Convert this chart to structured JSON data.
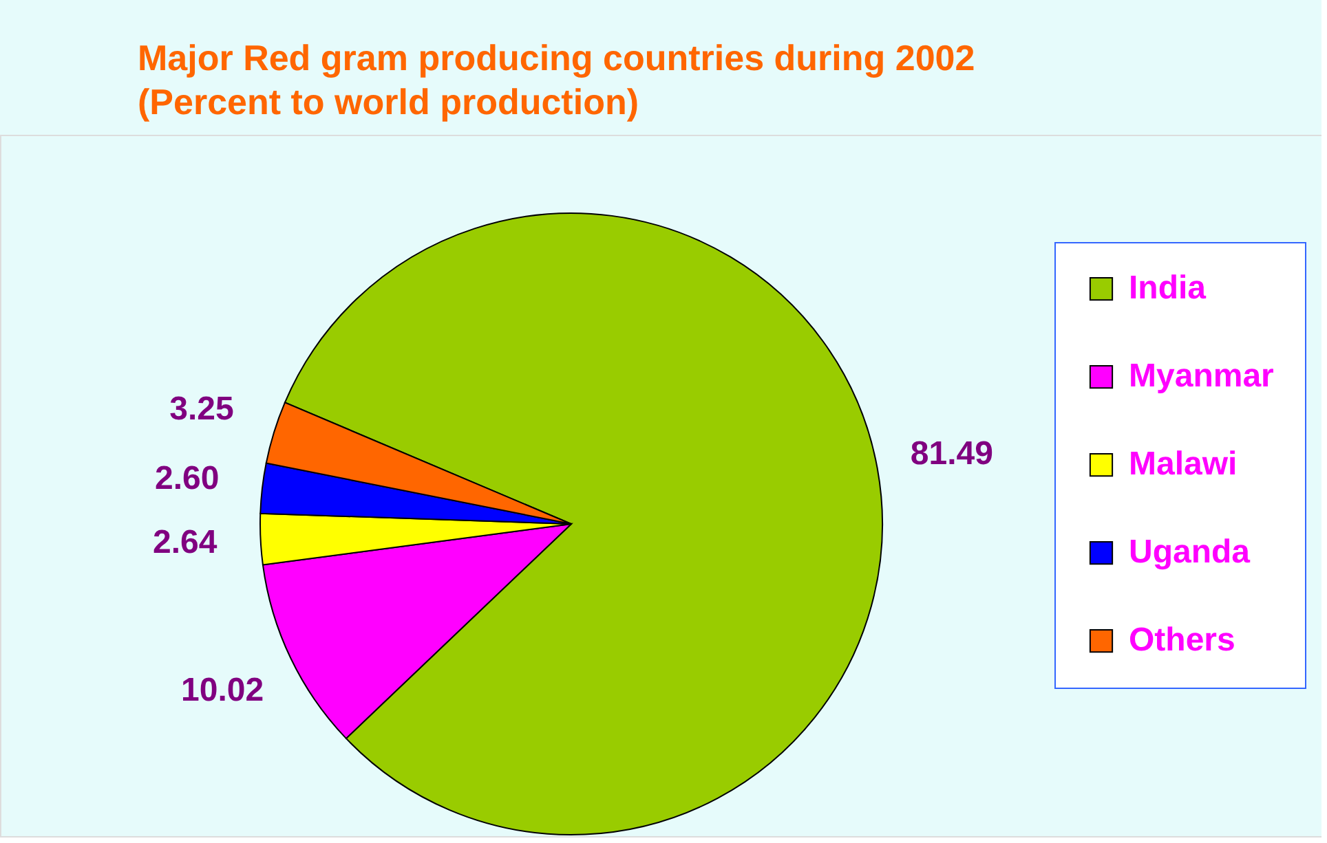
{
  "chart_data": {
    "type": "pie",
    "title": "Major Red gram producing countries during 2002",
    "subtitle": "(Percent to world production)",
    "categories": [
      "India",
      "Myanmar",
      "Malawi",
      "Uganda",
      "Others"
    ],
    "values": [
      81.49,
      10.02,
      2.64,
      2.6,
      3.25
    ],
    "colors": [
      "#99cc00",
      "#ff00ff",
      "#ffff00",
      "#0000ff",
      "#ff6600"
    ],
    "value_labels": [
      "81.49",
      "10.02",
      "2.64",
      "2.60",
      "3.25"
    ],
    "legend": "right"
  }
}
